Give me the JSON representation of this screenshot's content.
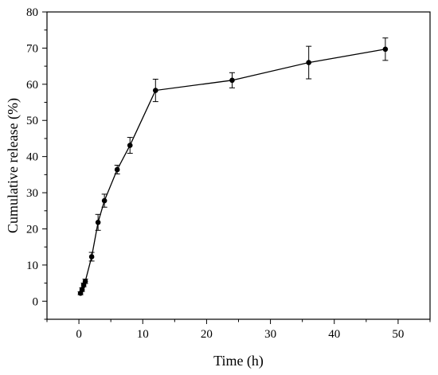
{
  "chart_data": {
    "type": "line",
    "title": "",
    "xlabel": "Time (h)",
    "ylabel": "Cumulative release (%)",
    "xlim": [
      -5,
      55
    ],
    "ylim": [
      -5,
      80
    ],
    "xticks": [
      0,
      10,
      20,
      30,
      40,
      50
    ],
    "yticks": [
      0,
      10,
      20,
      30,
      40,
      50,
      60,
      70,
      80
    ],
    "grid": false,
    "legend": "none",
    "series": [
      {
        "color": "#000000",
        "marker": "circle",
        "x": [
          0.25,
          0.5,
          0.75,
          1,
          2,
          3,
          4,
          6,
          8,
          12,
          24,
          36,
          48
        ],
        "y": [
          2.2,
          3.2,
          4.5,
          5.5,
          12.3,
          21.8,
          27.8,
          36.4,
          43.1,
          58.3,
          61.1,
          66.0,
          69.7
        ],
        "error": [
          0.4,
          0.5,
          0.5,
          0.6,
          1.2,
          2.2,
          1.8,
          1.2,
          2.2,
          3.1,
          2.1,
          4.5,
          3.1
        ]
      }
    ]
  }
}
